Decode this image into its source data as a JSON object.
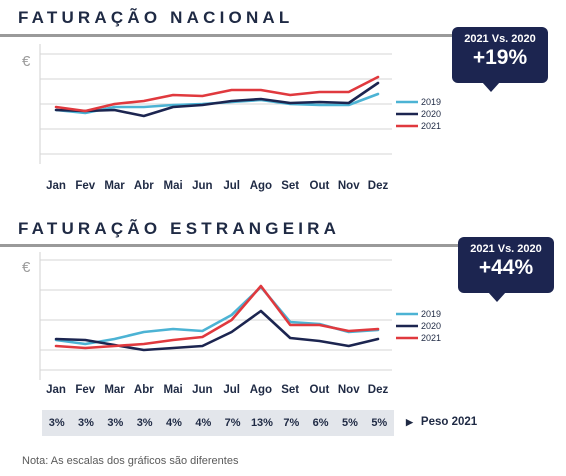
{
  "chart_data": [
    {
      "type": "line",
      "title": "FATURAÇÃO NACIONAL",
      "currency_symbol": "€",
      "categories": [
        "Jan",
        "Fev",
        "Mar",
        "Abr",
        "Mai",
        "Jun",
        "Jul",
        "Ago",
        "Set",
        "Out",
        "Nov",
        "Dez"
      ],
      "series": [
        {
          "name": "2019",
          "color": "#4cb3d4",
          "values": [
            44,
            41,
            47,
            47,
            49,
            50,
            52,
            54,
            50,
            49,
            49,
            60
          ]
        },
        {
          "name": "2020",
          "color": "#1c2550",
          "values": [
            44,
            43,
            44,
            38,
            47,
            49,
            53,
            55,
            51,
            52,
            51,
            71
          ]
        },
        {
          "name": "2021",
          "color": "#e0393e",
          "values": [
            47,
            43,
            50,
            53,
            59,
            58,
            64,
            64,
            59,
            62,
            62,
            77
          ]
        }
      ],
      "ylim": [
        0,
        100
      ],
      "grid": true,
      "legend": "right",
      "callout": {
        "caption": "2021 Vs. 2020",
        "value": "+19%"
      }
    },
    {
      "type": "line",
      "title": "FATURAÇÃO ESTRANGEIRA",
      "currency_symbol": "€",
      "categories": [
        "Jan",
        "Fev",
        "Mar",
        "Abr",
        "Mai",
        "Jun",
        "Jul",
        "Ago",
        "Set",
        "Out",
        "Nov",
        "Dez"
      ],
      "series": [
        {
          "name": "2019",
          "color": "#4cb3d4",
          "values": [
            20,
            16,
            21,
            28,
            31,
            29,
            45,
            73,
            38,
            36,
            28,
            30
          ]
        },
        {
          "name": "2020",
          "color": "#1c2550",
          "values": [
            21,
            20,
            15,
            10,
            12,
            14,
            28,
            49,
            22,
            19,
            14,
            21
          ]
        },
        {
          "name": "2021",
          "color": "#e0393e",
          "values": [
            14,
            12,
            14,
            16,
            20,
            23,
            40,
            74,
            35,
            35,
            29,
            31
          ]
        }
      ],
      "ylim": [
        0,
        100
      ],
      "grid": true,
      "legend": "right",
      "callout": {
        "caption": "2021 Vs. 2020",
        "value": "+44%"
      }
    }
  ],
  "weights": {
    "values": [
      "3%",
      "3%",
      "3%",
      "3%",
      "4%",
      "4%",
      "7%",
      "13%",
      "7%",
      "6%",
      "5%",
      "5%"
    ],
    "label": "Peso 2021"
  },
  "note": "Nota: As escalas dos gráficos são diferentes"
}
